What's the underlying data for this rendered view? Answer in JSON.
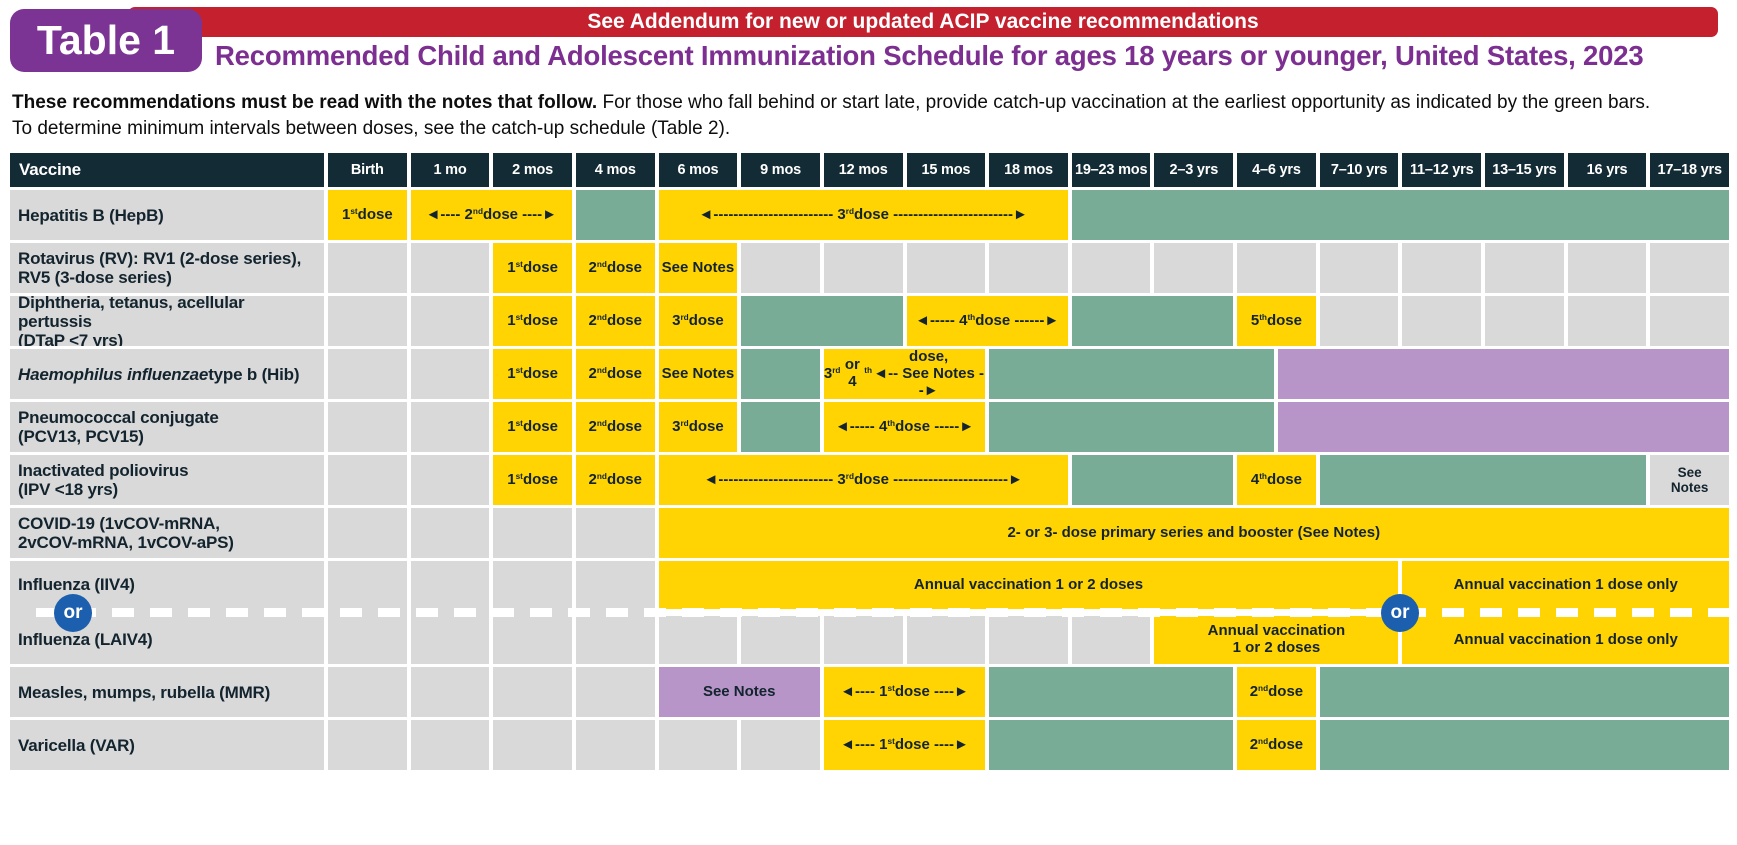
{
  "header": {
    "badge": "Table 1",
    "banner": "See Addendum for new or updated ACIP vaccine recommendations",
    "title": "Recommended Child and Adolescent Immunization Schedule for ages 18 years or younger, United States, 2023"
  },
  "intro": {
    "bold": "These recommendations must be read with the notes that follow.",
    "rest": " For those who fall behind or start late, provide catch-up vaccination at the earliest opportunity as indicated by the green bars.",
    "line2": "To determine minimum intervals between doses, see the catch-up schedule (Table 2)."
  },
  "colors": {
    "navy": "#132b35",
    "red": "#c4202e",
    "title_purple": "#7c2e91",
    "badge_purple": "#7c3494",
    "yellow": "#ffd402",
    "green": "#78ac97",
    "purple": "#b795c8",
    "gray": "#d9d9d9",
    "blue": "#1b5fae",
    "cell_text": "#13242e"
  },
  "columns": [
    "Vaccine",
    "Birth",
    "1 mo",
    "2 mos",
    "4 mos",
    "6 mos",
    "9 mos",
    "12 mos",
    "15 mos",
    "18 mos",
    "19–23 mos",
    "2–3 yrs",
    "4–6 yrs",
    "7–10 yrs",
    "11–12 yrs",
    "13–15 yrs",
    "16 yrs",
    "17–18 yrs"
  ],
  "legend_note": "green bars = catch-up vaccination",
  "rows": [
    {
      "key": "hepb",
      "label": "Hepatitis B (HepB)",
      "cells": [
        {
          "c": "y",
          "s": 1,
          "t": "1st dose"
        },
        {
          "c": "y",
          "s": 2,
          "t": "◄---- 2nd dose ----►"
        },
        {
          "c": "g",
          "s": 1
        },
        {
          "c": "y",
          "s": 5,
          "t": "◄------------------------ 3rd dose ------------------------►"
        },
        {
          "c": "g",
          "s": 8
        }
      ]
    },
    {
      "key": "rv",
      "label": "Rotavirus (RV): RV1 (2-dose series),\nRV5 (3-dose series)",
      "cells": [
        {
          "c": "e",
          "s": 1
        },
        {
          "c": "e",
          "s": 1
        },
        {
          "c": "y",
          "s": 1,
          "t": "1st dose"
        },
        {
          "c": "y",
          "s": 1,
          "t": "2nd dose"
        },
        {
          "c": "y",
          "s": 1,
          "t": "See Notes"
        },
        {
          "c": "e",
          "s": 1
        },
        {
          "c": "e",
          "s": 1
        },
        {
          "c": "e",
          "s": 1
        },
        {
          "c": "e",
          "s": 1
        },
        {
          "c": "e",
          "s": 1
        },
        {
          "c": "e",
          "s": 1
        },
        {
          "c": "e",
          "s": 1
        },
        {
          "c": "e",
          "s": 1
        },
        {
          "c": "e",
          "s": 1
        },
        {
          "c": "e",
          "s": 1
        },
        {
          "c": "e",
          "s": 1
        },
        {
          "c": "e",
          "s": 1
        }
      ]
    },
    {
      "key": "dtap",
      "label": "Diphtheria, tetanus, acellular pertussis\n(DTaP <7 yrs)",
      "cells": [
        {
          "c": "e",
          "s": 1
        },
        {
          "c": "e",
          "s": 1
        },
        {
          "c": "y",
          "s": 1,
          "t": "1st dose"
        },
        {
          "c": "y",
          "s": 1,
          "t": "2nd dose"
        },
        {
          "c": "y",
          "s": 1,
          "t": "3rd dose"
        },
        {
          "c": "g",
          "s": 2
        },
        {
          "c": "y",
          "s": 2,
          "t": "◄----- 4th dose ------►"
        },
        {
          "c": "g",
          "s": 2
        },
        {
          "c": "y",
          "s": 1,
          "t": "5th dose"
        },
        {
          "c": "e",
          "s": 1
        },
        {
          "c": "e",
          "s": 1
        },
        {
          "c": "e",
          "s": 1
        },
        {
          "c": "e",
          "s": 1
        },
        {
          "c": "e",
          "s": 1
        }
      ]
    },
    {
      "key": "hib",
      "label_parts": [
        {
          "t": "Haemophilus influenzae",
          "i": true
        },
        {
          "t": " type b (Hib)",
          "i": false
        }
      ],
      "cells": [
        {
          "c": "e",
          "s": 1
        },
        {
          "c": "e",
          "s": 1
        },
        {
          "c": "y",
          "s": 1,
          "t": "1st dose"
        },
        {
          "c": "y",
          "s": 1,
          "t": "2nd dose"
        },
        {
          "c": "y",
          "s": 1,
          "t": "See Notes"
        },
        {
          "c": "g",
          "s": 1
        },
        {
          "c": "y",
          "s": 2,
          "t": "3rd or 4th dose,\n◄-- See Notes --►"
        },
        {
          "c": "gp",
          "s": 9
        }
      ]
    },
    {
      "key": "pcv",
      "label": "Pneumococcal conjugate\n(PCV13, PCV15)",
      "cells": [
        {
          "c": "e",
          "s": 1
        },
        {
          "c": "e",
          "s": 1
        },
        {
          "c": "y",
          "s": 1,
          "t": "1st dose"
        },
        {
          "c": "y",
          "s": 1,
          "t": "2nd dose"
        },
        {
          "c": "y",
          "s": 1,
          "t": "3rd dose"
        },
        {
          "c": "g",
          "s": 1
        },
        {
          "c": "y",
          "s": 2,
          "t": "◄----- 4th dose -----►"
        },
        {
          "c": "gp",
          "s": 9
        }
      ]
    },
    {
      "key": "ipv",
      "label": "Inactivated poliovirus\n(IPV <18 yrs)",
      "cells": [
        {
          "c": "e",
          "s": 1
        },
        {
          "c": "e",
          "s": 1
        },
        {
          "c": "y",
          "s": 1,
          "t": "1st dose"
        },
        {
          "c": "y",
          "s": 1,
          "t": "2nd dose"
        },
        {
          "c": "y",
          "s": 5,
          "t": "◄----------------------- 3rd dose -----------------------►"
        },
        {
          "c": "g",
          "s": 2
        },
        {
          "c": "y",
          "s": 1,
          "t": "4th dose"
        },
        {
          "c": "g",
          "s": 4
        },
        {
          "c": "l",
          "s": 1,
          "t": "See\nNotes"
        }
      ]
    },
    {
      "key": "covid",
      "label": "COVID-19 (1vCOV-mRNA,\n2vCOV-mRNA, 1vCOV-aPS)",
      "cells": [
        {
          "c": "e",
          "s": 1
        },
        {
          "c": "e",
          "s": 1
        },
        {
          "c": "e",
          "s": 1
        },
        {
          "c": "e",
          "s": 1
        },
        {
          "c": "y",
          "s": 13,
          "t": "2- or 3- dose primary series and booster (See Notes)"
        }
      ]
    },
    {
      "key": "mmr",
      "label": "Measles, mumps, rubella (MMR)",
      "cells": [
        {
          "c": "e",
          "s": 1
        },
        {
          "c": "e",
          "s": 1
        },
        {
          "c": "e",
          "s": 1
        },
        {
          "c": "e",
          "s": 1
        },
        {
          "c": "p",
          "s": 2,
          "t": "See Notes"
        },
        {
          "c": "y",
          "s": 2,
          "t": "◄---- 1st dose ----►"
        },
        {
          "c": "g",
          "s": 3
        },
        {
          "c": "y",
          "s": 1,
          "t": "2nd dose"
        },
        {
          "c": "g",
          "s": 5
        }
      ]
    },
    {
      "key": "var",
      "label": "Varicella (VAR)",
      "cells": [
        {
          "c": "e",
          "s": 1
        },
        {
          "c": "e",
          "s": 1
        },
        {
          "c": "e",
          "s": 1
        },
        {
          "c": "e",
          "s": 1
        },
        {
          "c": "e",
          "s": 1
        },
        {
          "c": "e",
          "s": 1
        },
        {
          "c": "y",
          "s": 2,
          "t": "◄---- 1st dose ----►"
        },
        {
          "c": "g",
          "s": 3
        },
        {
          "c": "y",
          "s": 1,
          "t": "2nd dose"
        },
        {
          "c": "g",
          "s": 5
        }
      ]
    }
  ],
  "flu": {
    "label_iiv4": "Influenza (IIV4)",
    "label_laiv4": "Influenza (LAIV4)",
    "iiv4_bar": "Annual vaccination 1 or 2 doses",
    "laiv4_box": "Annual vaccination\n1 or 2 doses",
    "iiv4_one_dose": "Annual vaccination 1 dose only",
    "laiv4_one_dose": "Annual vaccination 1 dose only",
    "or_badge": "or"
  }
}
